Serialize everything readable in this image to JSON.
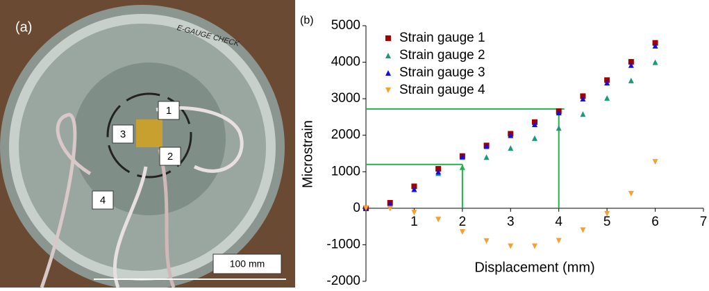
{
  "photo": {
    "panel_label": "(a)",
    "handwriting": "E-GAUGE CHECK",
    "gauge_labels": [
      "1",
      "2",
      "3",
      "4"
    ],
    "scale_bar": "100 mm"
  },
  "chart_data": {
    "type": "scatter",
    "panel_label": "(b)",
    "x_label": "Displacement (mm)",
    "y_label": "Microstrain",
    "x": [
      0,
      0.5,
      1,
      1.5,
      2,
      2.5,
      3,
      3.5,
      4,
      4.5,
      5,
      5.5,
      6
    ],
    "series": [
      {
        "name": "Strain gauge 1",
        "color": "#a00000",
        "marker": "square",
        "values": [
          0,
          150,
          600,
          1080,
          1430,
          1720,
          2040,
          2360,
          2660,
          3070,
          3510,
          4010,
          4530
        ]
      },
      {
        "name": "Strain gauge 2",
        "color": "#1a9a7a",
        "marker": "triangle-up",
        "values": [
          0,
          120,
          520,
          960,
          1400,
          1400,
          1650,
          1920,
          2200,
          2580,
          3020,
          3500,
          4000
        ]
      },
      {
        "name": "Strain gauge 3",
        "color": "#1010e0",
        "marker": "triangle-up",
        "values": [
          0,
          130,
          520,
          1000,
          1420,
          1700,
          2000,
          2300,
          2620,
          3000,
          3440,
          3920,
          4450
        ]
      },
      {
        "name": "Strain gauge 4",
        "color": "#f5a030",
        "marker": "triangle-down",
        "values": [
          0,
          -10,
          -120,
          -310,
          -650,
          -900,
          -1040,
          -1040,
          -890,
          -600,
          -150,
          400,
          1270
        ]
      }
    ],
    "guides": [
      {
        "x": 2,
        "y": 1200
      },
      {
        "x": 4,
        "y": 2720
      }
    ],
    "guide_color": "#22b04a",
    "xlim": [
      0,
      7
    ],
    "xticks": [
      1,
      2,
      3,
      4,
      5,
      6,
      7
    ],
    "ylim": [
      -2000,
      5000
    ],
    "yticks": [
      -2000,
      -1000,
      0,
      1000,
      2000,
      3000,
      4000,
      5000
    ],
    "legend": "upper-left"
  }
}
